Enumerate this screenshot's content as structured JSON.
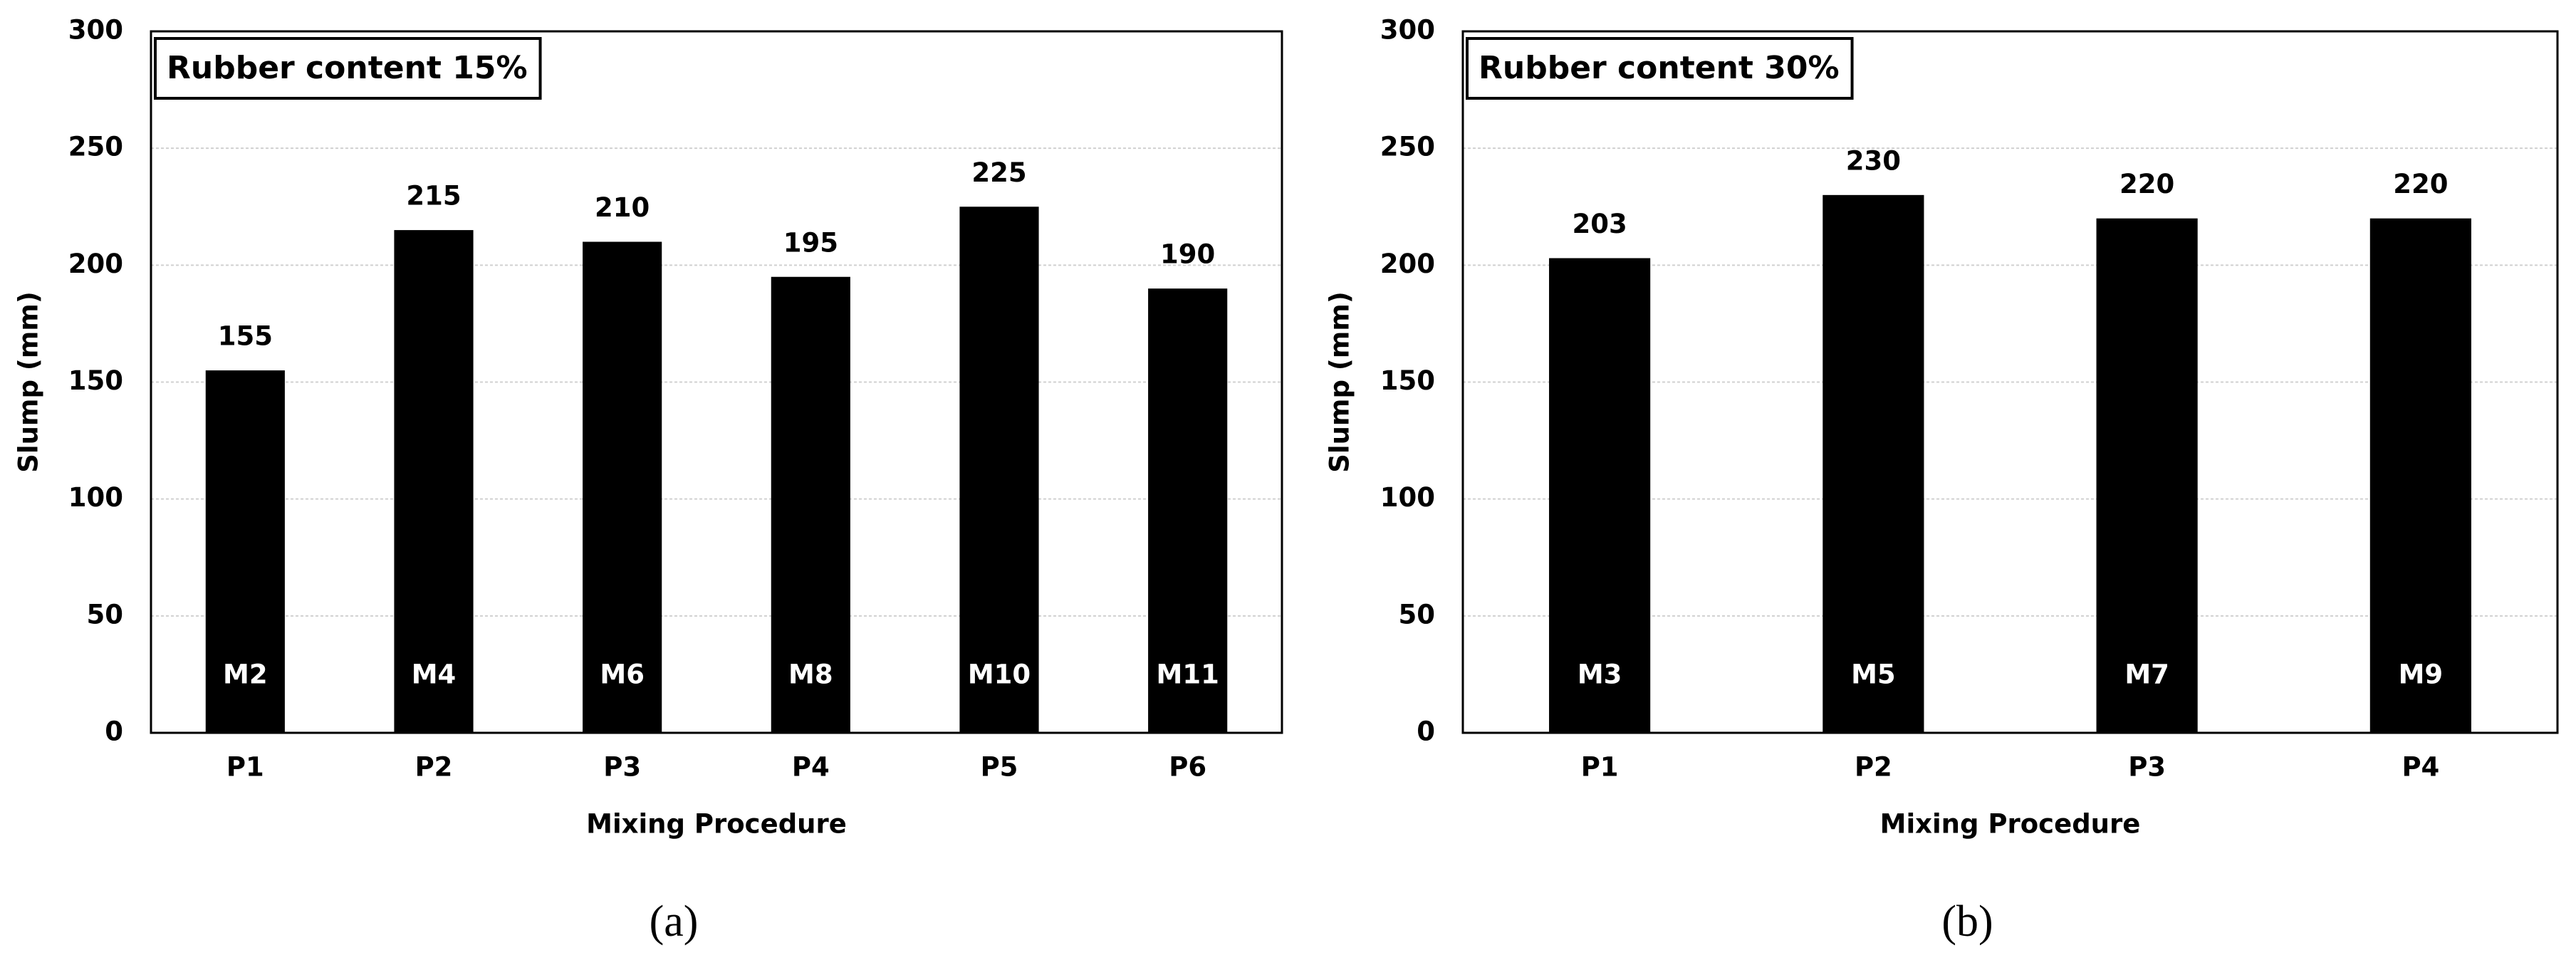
{
  "chart_data": [
    {
      "type": "bar",
      "annotation": "Rubber content 15%",
      "categories": [
        "P1",
        "P2",
        "P3",
        "P4",
        "P5",
        "P6"
      ],
      "values": [
        155,
        215,
        210,
        195,
        225,
        190
      ],
      "bar_labels": [
        "M2",
        "M4",
        "M6",
        "M8",
        "M10",
        "M11"
      ],
      "color": "#000000",
      "xlabel": "Mixing Procedure",
      "ylabel": "Slump (mm)",
      "ylim": [
        0,
        300
      ],
      "yticks": [
        0,
        50,
        100,
        150,
        200,
        250,
        300
      ],
      "grid": true,
      "caption": "(a)"
    },
    {
      "type": "bar",
      "annotation": "Rubber content 30%",
      "categories": [
        "P1",
        "P2",
        "P3",
        "P4"
      ],
      "values": [
        203,
        230,
        220,
        220
      ],
      "bar_labels": [
        "M3",
        "M5",
        "M7",
        "M9"
      ],
      "color": "#000000",
      "xlabel": "Mixing Procedure",
      "ylabel": "Slump (mm)",
      "ylim": [
        0,
        300
      ],
      "yticks": [
        0,
        50,
        100,
        150,
        200,
        250,
        300
      ],
      "grid": true,
      "caption": "(b)"
    }
  ]
}
